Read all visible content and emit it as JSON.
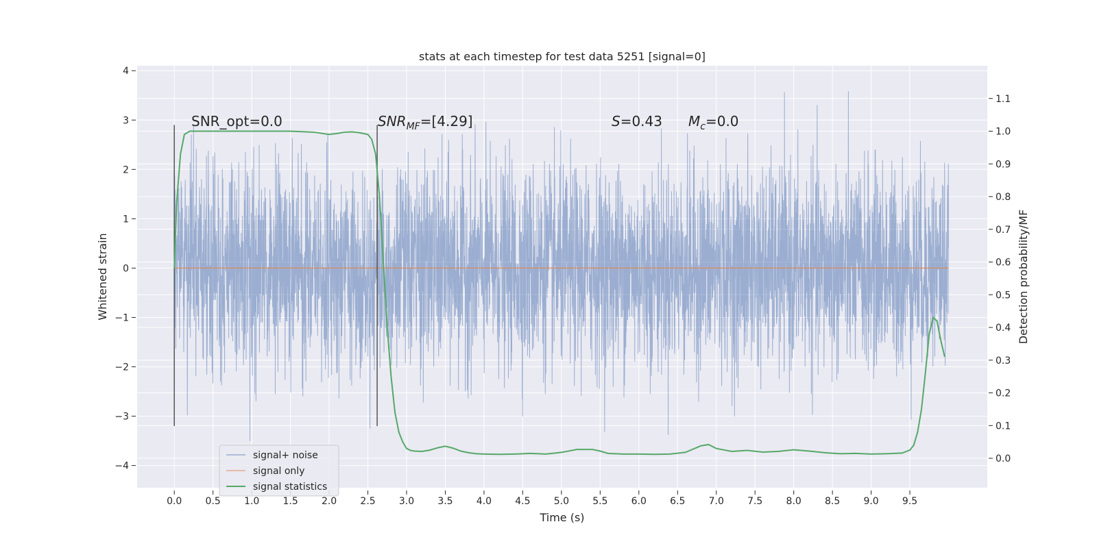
{
  "chart_data": {
    "type": "line",
    "title": "stats at each timestep for test data 5251 [signal=0]",
    "xlabel": "Time (s)",
    "ylabel": "Whitened strain",
    "y2label": "Detection probability/MF",
    "xlim": [
      -0.48,
      10.5
    ],
    "ylim": [
      -4.45,
      4.1
    ],
    "y2lim": [
      -0.09,
      1.2
    ],
    "xticks": [
      "0.0",
      "0.5",
      "1.0",
      "1.5",
      "2.0",
      "2.5",
      "3.0",
      "3.5",
      "4.0",
      "4.5",
      "5.0",
      "5.5",
      "6.0",
      "6.5",
      "7.0",
      "7.5",
      "8.0",
      "8.5",
      "9.0",
      "9.5"
    ],
    "yticks": [
      "4",
      "3",
      "2",
      "1",
      "0",
      "−1",
      "−2",
      "−3",
      "−4"
    ],
    "y2ticks": [
      "1.1",
      "1.0",
      "0.9",
      "0.8",
      "0.7",
      "0.6",
      "0.5",
      "0.4",
      "0.3",
      "0.2",
      "0.1",
      "0.0"
    ],
    "grid": true,
    "legend_position": "lower-left",
    "colors": {
      "background": "#eaeaf2",
      "noise": "#4c72b0",
      "signal_only": "#dd8452",
      "statistics": "#55a868",
      "vline": "#555555"
    },
    "series": [
      {
        "name": "signal+ noise",
        "axis": "left",
        "kind": "noise",
        "x_range": [
          0,
          10
        ],
        "amplitude_std": 1.0,
        "seed": 5251
      },
      {
        "name": "signal only",
        "axis": "left",
        "x": [
          0,
          10
        ],
        "y": [
          0,
          0
        ]
      },
      {
        "name": "signal statistics",
        "axis": "right",
        "x": [
          0.0,
          0.03,
          0.08,
          0.13,
          0.2,
          0.3,
          0.5,
          0.8,
          1.2,
          1.5,
          1.8,
          2.0,
          2.1,
          2.2,
          2.3,
          2.4,
          2.5,
          2.55,
          2.6,
          2.65,
          2.7,
          2.75,
          2.8,
          2.85,
          2.9,
          2.95,
          3.0,
          3.05,
          3.1,
          3.2,
          3.3,
          3.4,
          3.5,
          3.6,
          3.7,
          3.8,
          3.9,
          4.0,
          4.2,
          4.4,
          4.6,
          4.8,
          5.0,
          5.2,
          5.4,
          5.5,
          5.6,
          5.8,
          6.0,
          6.2,
          6.4,
          6.6,
          6.8,
          6.9,
          7.0,
          7.2,
          7.4,
          7.6,
          7.8,
          8.0,
          8.2,
          8.4,
          8.6,
          8.8,
          9.0,
          9.2,
          9.4,
          9.5,
          9.55,
          9.6,
          9.65,
          9.7,
          9.75,
          9.8,
          9.85,
          9.9,
          9.95
        ],
        "y": [
          0.58,
          0.78,
          0.93,
          0.99,
          1.0,
          1.0,
          1.0,
          1.0,
          1.0,
          1.0,
          0.997,
          0.99,
          0.993,
          0.997,
          0.998,
          0.995,
          0.99,
          0.975,
          0.93,
          0.8,
          0.6,
          0.4,
          0.25,
          0.14,
          0.08,
          0.05,
          0.03,
          0.024,
          0.022,
          0.021,
          0.025,
          0.032,
          0.037,
          0.031,
          0.022,
          0.017,
          0.014,
          0.013,
          0.012,
          0.013,
          0.015,
          0.013,
          0.018,
          0.027,
          0.027,
          0.022,
          0.015,
          0.013,
          0.013,
          0.012,
          0.013,
          0.018,
          0.038,
          0.042,
          0.03,
          0.021,
          0.024,
          0.019,
          0.021,
          0.026,
          0.022,
          0.017,
          0.014,
          0.015,
          0.013,
          0.014,
          0.016,
          0.025,
          0.04,
          0.08,
          0.15,
          0.26,
          0.38,
          0.43,
          0.42,
          0.36,
          0.31
        ]
      }
    ],
    "vlines": [
      {
        "x": 0.0,
        "y_from": -3.2,
        "y_to": 2.9
      },
      {
        "x": 2.62,
        "y_from": -3.2,
        "y_to": 2.9
      }
    ],
    "annotations": [
      {
        "id": "snr_opt",
        "x": 0.2,
        "y": 2.8,
        "text": "SNR_opt=0.0"
      },
      {
        "id": "snr_mf_pre",
        "x": 2.6,
        "y": 2.8,
        "text": "SNR"
      },
      {
        "id": "snr_mf_sub",
        "text": "MF"
      },
      {
        "id": "snr_mf_post",
        "text": "=[4.29]"
      },
      {
        "id": "s_stat_sym",
        "x": 5.6,
        "y": 2.8,
        "text": "S"
      },
      {
        "id": "s_stat_val",
        "text": "=0.43"
      },
      {
        "id": "mc_sym",
        "x": 6.6,
        "y": 2.8,
        "text": "M"
      },
      {
        "id": "mc_sub",
        "text": "c"
      },
      {
        "id": "mc_val",
        "text": "=0.0"
      }
    ]
  }
}
